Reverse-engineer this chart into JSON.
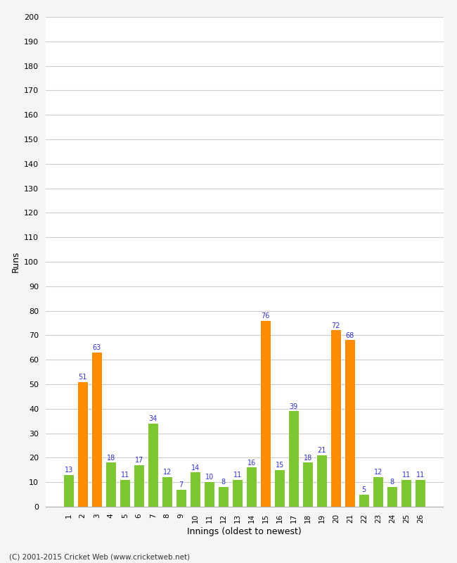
{
  "innings": [
    1,
    2,
    3,
    4,
    5,
    6,
    7,
    8,
    9,
    10,
    11,
    12,
    13,
    14,
    15,
    16,
    17,
    18,
    19,
    20,
    21,
    22,
    23,
    24,
    25,
    26
  ],
  "values": [
    13,
    51,
    63,
    18,
    11,
    17,
    34,
    12,
    7,
    14,
    10,
    8,
    11,
    16,
    76,
    15,
    39,
    18,
    21,
    72,
    68,
    5,
    12,
    8,
    11,
    11
  ],
  "colors": [
    "#7dc832",
    "#ff8c00",
    "#ff8c00",
    "#7dc832",
    "#7dc832",
    "#7dc832",
    "#7dc832",
    "#7dc832",
    "#7dc832",
    "#7dc832",
    "#7dc832",
    "#7dc832",
    "#7dc832",
    "#7dc832",
    "#ff8c00",
    "#7dc832",
    "#7dc832",
    "#7dc832",
    "#7dc832",
    "#ff8c00",
    "#ff8c00",
    "#7dc832",
    "#7dc832",
    "#7dc832",
    "#7dc832",
    "#7dc832"
  ],
  "xlabel": "Innings (oldest to newest)",
  "ylabel": "Runs",
  "ylim": [
    0,
    200
  ],
  "yticks": [
    0,
    10,
    20,
    30,
    40,
    50,
    60,
    70,
    80,
    90,
    100,
    110,
    120,
    130,
    140,
    150,
    160,
    170,
    180,
    190,
    200
  ],
  "background_color": "#f5f5f5",
  "plot_bg_color": "#ffffff",
  "grid_color": "#cccccc",
  "label_color": "#3333cc",
  "footer": "(C) 2001-2015 Cricket Web (www.cricketweb.net)",
  "bar_width": 0.7
}
